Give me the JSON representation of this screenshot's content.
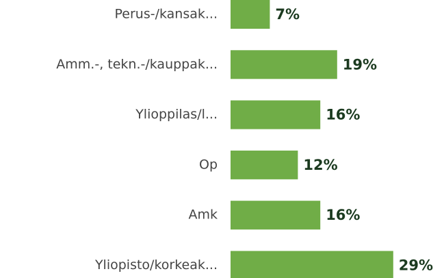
{
  "chart_data": {
    "type": "bar",
    "orientation": "horizontal",
    "categories": [
      "Perus-/kansak...",
      "Amm.-, tekn.-/kauppak...",
      "Ylioppilas/l...",
      "Op",
      "Amk",
      "Yliopisto/korkeak..."
    ],
    "values": [
      7,
      19,
      16,
      12,
      16,
      29
    ],
    "value_labels": [
      "7%",
      "19%",
      "16%",
      "12%",
      "16%",
      "29%"
    ],
    "color": "#70ad47"
  }
}
